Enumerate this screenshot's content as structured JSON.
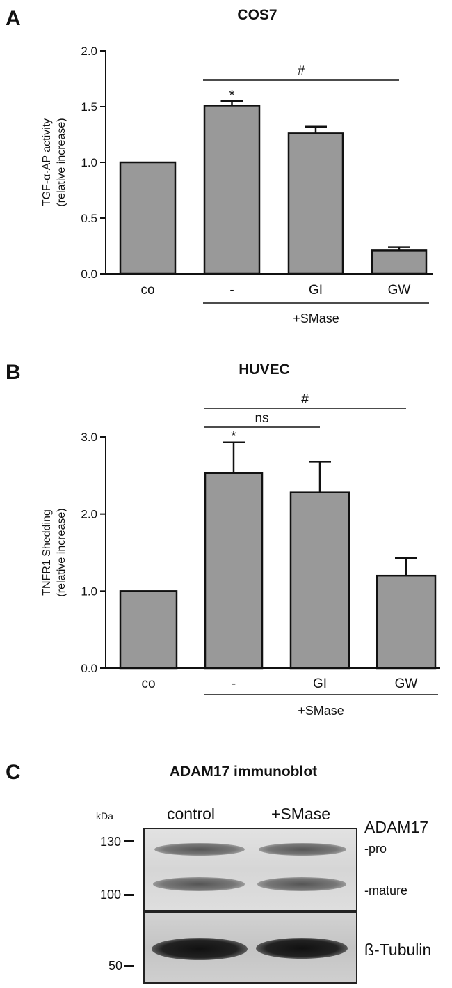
{
  "panels": {
    "A": {
      "letter": "A"
    },
    "B": {
      "letter": "B"
    },
    "C": {
      "letter": "C"
    }
  },
  "chart_data": [
    {
      "type": "bar",
      "title": "COS7",
      "ylabel_line1": "TGF-α-AP activity",
      "ylabel_line2": "(relative increase)",
      "categories": [
        "co",
        "-",
        "GI",
        "GW"
      ],
      "values": [
        1.0,
        1.51,
        1.26,
        0.21
      ],
      "errors": [
        0,
        0.04,
        0.06,
        0.03
      ],
      "ylim": [
        0,
        2.0
      ],
      "yticks": [
        "0.0",
        "0.5",
        "1.0",
        "1.5",
        "2.0"
      ],
      "group_label": "+SMase",
      "annotations": [
        {
          "symbol": "*",
          "category": "-"
        },
        {
          "symbol": "#",
          "from": "-",
          "to": "GW"
        }
      ],
      "bar_color": "#999999"
    },
    {
      "type": "bar",
      "title": "HUVEC",
      "ylabel_line1": "TNFR1 Shedding",
      "ylabel_line2": "(relative increase)",
      "categories": [
        "co",
        "-",
        "GI",
        "GW"
      ],
      "values": [
        1.0,
        2.53,
        2.28,
        1.2
      ],
      "errors": [
        0,
        0.4,
        0.4,
        0.23
      ],
      "ylim": [
        0,
        3.0
      ],
      "yticks": [
        "0.0",
        "1.0",
        "2.0",
        "3.0"
      ],
      "group_label": "+SMase",
      "annotations": [
        {
          "symbol": "*",
          "category": "-"
        },
        {
          "symbol": "ns",
          "from": "-",
          "to": "GI"
        },
        {
          "symbol": "#",
          "from": "-",
          "to": "GW"
        }
      ],
      "bar_color": "#999999"
    }
  ],
  "blot": {
    "title": "ADAM17 immunoblot",
    "kda_label": "kDa",
    "lanes": [
      "control",
      "+SMase"
    ],
    "markers": [
      "130",
      "100",
      "50"
    ],
    "protein": "ADAM17",
    "band_pro": "-pro",
    "band_mature": "-mature",
    "loading_control": "ß-Tubulin"
  }
}
